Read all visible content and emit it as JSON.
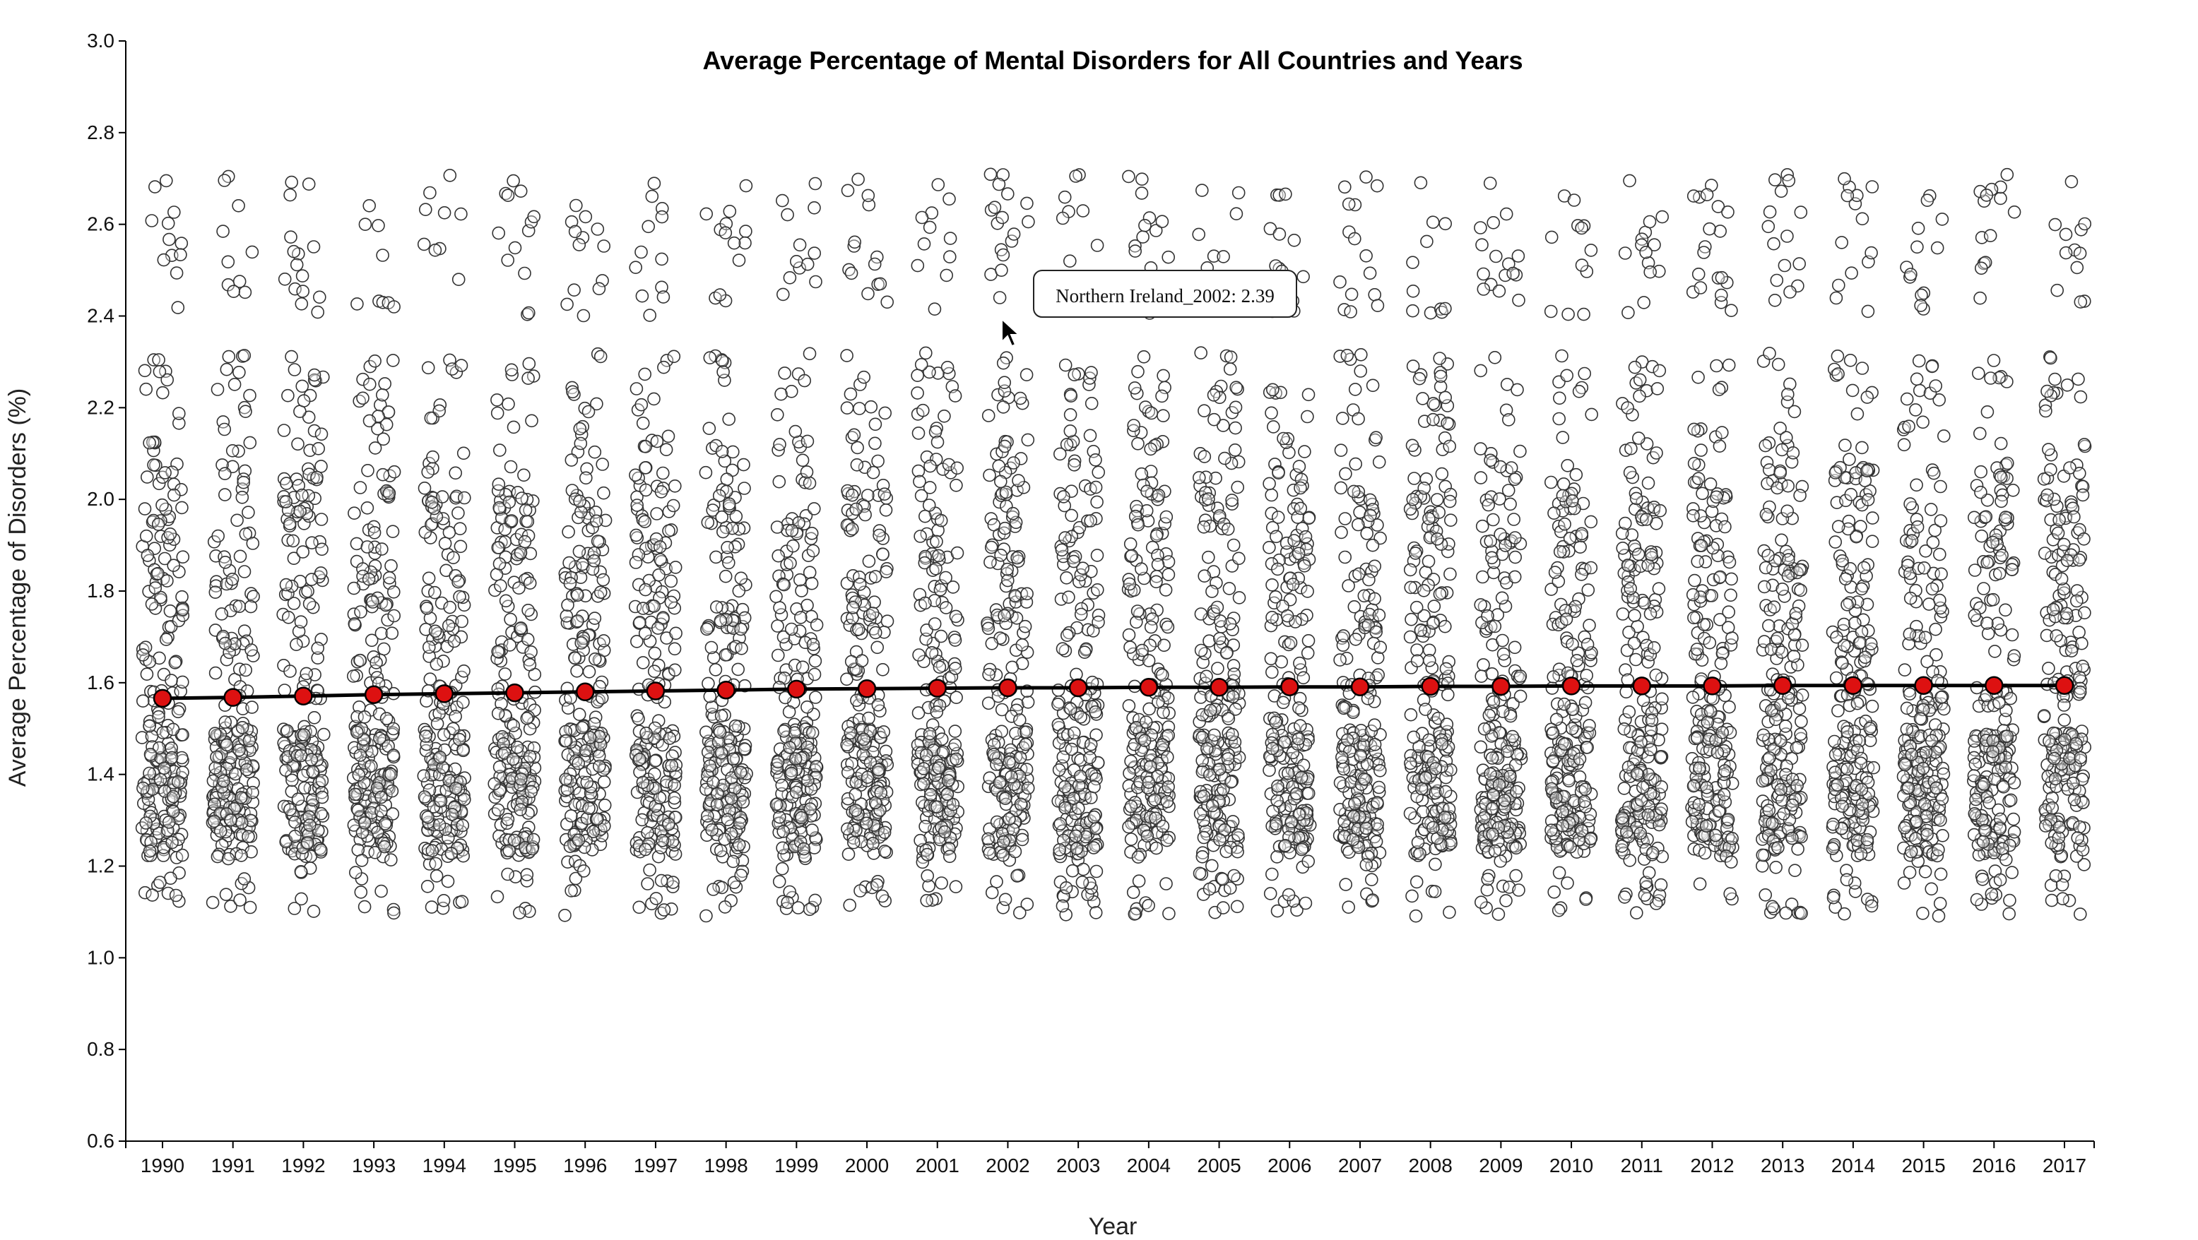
{
  "chart_data": {
    "type": "scatter",
    "title": "Average Percentage of Mental Disorders for All Countries and Years",
    "xlabel": "Year",
    "ylabel": "Average Percentage of Disorders (%)",
    "x_categories": [
      "1990",
      "1991",
      "1992",
      "1993",
      "1994",
      "1995",
      "1996",
      "1997",
      "1998",
      "1999",
      "2000",
      "2001",
      "2002",
      "2003",
      "2004",
      "2005",
      "2006",
      "2007",
      "2008",
      "2009",
      "2010",
      "2011",
      "2012",
      "2013",
      "2014",
      "2015",
      "2016",
      "2017"
    ],
    "ylim": [
      0.6,
      3.0
    ],
    "y_ticks": [
      "0.6",
      "0.8",
      "1.0",
      "1.2",
      "1.4",
      "1.6",
      "1.8",
      "2.0",
      "2.2",
      "2.4",
      "2.6",
      "2.8",
      "3.0"
    ],
    "grid": false,
    "points_per_year_approx": 228,
    "point_distribution": {
      "dense_range": [
        1.18,
        2.1
      ],
      "min": 1.09,
      "max": 2.71,
      "upper_cluster": [
        2.4,
        2.71
      ]
    },
    "series": [
      {
        "name": "",
        "type": "line",
        "values": [
          1.566,
          1.568,
          1.571,
          1.574,
          1.576,
          1.578,
          1.58,
          1.582,
          1.584,
          1.586,
          1.587,
          1.588,
          1.589,
          1.589,
          1.59,
          1.59,
          1.591,
          1.591,
          1.592,
          1.592,
          1.593,
          1.593,
          1.593,
          1.594,
          1.594,
          1.594,
          1.594,
          1.594
        ],
        "color": "#000000",
        "marker_color": "#dd1111"
      }
    ],
    "tooltip": {
      "text": "Northern Ireland_2002: 2.39",
      "x": "2002",
      "y": 2.39
    },
    "colors": {
      "point_stroke": "#333333",
      "point_fill": "#ffffff",
      "mean_marker": "#dd1111",
      "mean_line": "#000000"
    }
  }
}
